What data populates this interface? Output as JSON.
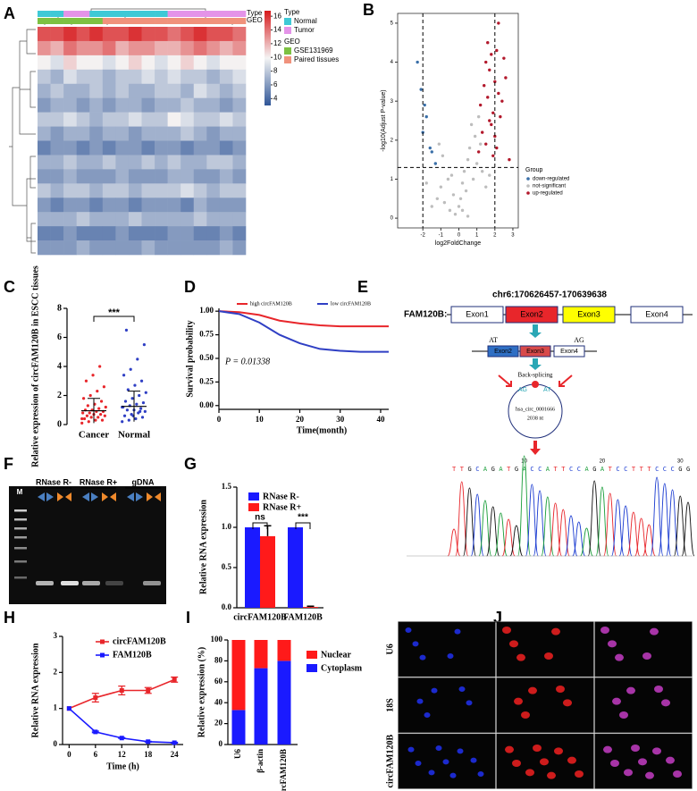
{
  "chart_data": [
    {
      "panel": "A",
      "type": "heatmap",
      "annotation_labels": [
        "Type",
        "GEO"
      ],
      "columns_type": [
        "Normal",
        "Normal",
        "Tumor",
        "Tumor",
        "Normal",
        "Normal",
        "Normal",
        "Normal",
        "Normal",
        "Normal",
        "Tumor",
        "Tumor",
        "Tumor",
        "Tumor",
        "Tumor",
        "Tumor"
      ],
      "columns_geo": [
        "GSE131969",
        "GSE131969",
        "GSE131969",
        "GSE131969",
        "GSE131969",
        "Paired tissues",
        "Paired tissues",
        "Paired tissues",
        "Paired tissues",
        "Paired tissues",
        "Paired tissues",
        "Paired tissues",
        "Paired tissues",
        "Paired tissues",
        "Paired tissues",
        "Paired tissues"
      ],
      "legend": [
        {
          "title": "Type",
          "items": [
            {
              "name": "Normal",
              "color": "#3ec9d6"
            },
            {
              "name": "Tumor",
              "color": "#e493e8"
            }
          ]
        },
        {
          "title": "GEO",
          "items": [
            {
              "name": "GSE131969",
              "color": "#7dc142"
            },
            {
              "name": "Paired tissues",
              "color": "#f0927c"
            }
          ]
        }
      ],
      "colors": [
        "#2f5597",
        "#f4f4f4",
        "#d7191c"
      ],
      "zlim": [
        3,
        16.8
      ],
      "zticks": [
        4,
        6,
        8,
        10,
        12,
        14,
        16
      ],
      "values": [
        [
          15,
          15,
          16,
          15,
          16,
          15,
          15,
          16,
          15,
          15,
          14,
          15,
          16,
          15,
          15,
          14
        ],
        [
          13,
          12,
          14,
          13,
          13,
          14,
          12,
          13,
          13,
          12,
          12,
          13,
          14,
          13,
          12,
          13
        ],
        [
          10,
          9,
          11,
          10,
          10,
          9,
          10,
          11,
          10,
          9,
          10,
          11,
          10,
          9,
          10,
          10
        ],
        [
          8,
          7,
          9,
          8,
          8,
          7,
          8,
          8,
          9,
          8,
          9,
          8,
          8,
          7,
          8,
          9
        ],
        [
          7,
          8,
          7,
          7,
          8,
          7,
          8,
          7,
          7,
          8,
          8,
          7,
          9,
          8,
          7,
          8
        ],
        [
          6,
          7,
          7,
          6,
          7,
          6,
          7,
          7,
          6,
          7,
          7,
          8,
          7,
          7,
          6,
          7
        ],
        [
          8,
          8,
          9,
          8,
          7,
          8,
          8,
          9,
          8,
          8,
          10,
          9,
          8,
          8,
          9,
          8
        ],
        [
          7,
          6,
          7,
          7,
          6,
          7,
          7,
          6,
          7,
          7,
          7,
          8,
          7,
          6,
          7,
          7
        ],
        [
          5,
          6,
          6,
          5,
          6,
          5,
          6,
          6,
          5,
          6,
          6,
          5,
          6,
          6,
          5,
          6
        ],
        [
          7,
          7,
          8,
          7,
          7,
          8,
          7,
          7,
          8,
          7,
          8,
          7,
          7,
          8,
          8,
          7
        ],
        [
          6,
          6,
          7,
          6,
          6,
          6,
          7,
          6,
          6,
          6,
          7,
          7,
          6,
          6,
          7,
          6
        ],
        [
          8,
          7,
          8,
          8,
          7,
          8,
          8,
          7,
          8,
          8,
          8,
          9,
          8,
          7,
          8,
          8
        ],
        [
          6,
          5,
          6,
          6,
          5,
          6,
          6,
          5,
          6,
          6,
          6,
          5,
          7,
          6,
          6,
          6
        ],
        [
          7,
          7,
          7,
          8,
          7,
          7,
          7,
          8,
          7,
          7,
          7,
          7,
          8,
          7,
          7,
          7
        ],
        [
          5,
          5,
          6,
          5,
          5,
          5,
          6,
          5,
          5,
          5,
          6,
          6,
          5,
          5,
          6,
          5
        ],
        [
          6,
          6,
          6,
          7,
          6,
          6,
          6,
          6,
          7,
          6,
          6,
          6,
          6,
          6,
          7,
          6
        ]
      ]
    },
    {
      "panel": "B",
      "type": "scatter",
      "xlabel": "log2FoldChange",
      "ylabel": "-log10(Adjust P-value)",
      "xlim": [
        -3.4,
        3.3
      ],
      "ylim": [
        -0.25,
        5.25
      ],
      "xticks": [
        -2,
        -1,
        0,
        1,
        2,
        3
      ],
      "yticks": [
        0,
        1,
        2,
        3,
        4,
        5
      ],
      "vlines": [
        -2,
        2
      ],
      "hline": 1.3,
      "legend_title": "Group",
      "series": [
        {
          "name": "down-regulated",
          "color": "#3a6fa8",
          "x": [
            -2.3,
            -2.1,
            -1.9,
            -1.6,
            -1.8,
            -2.0,
            -1.5,
            -1.3
          ],
          "values": [
            4.0,
            3.3,
            2.9,
            1.8,
            2.6,
            2.2,
            1.7,
            1.4
          ]
        },
        {
          "name": "not-significant",
          "color": "#bdbdbd",
          "x": [
            -1.5,
            -1.2,
            -1,
            -0.8,
            -0.6,
            -0.5,
            -0.3,
            -0.2,
            0,
            0.1,
            0.2,
            0.3,
            0.4,
            0.5,
            0.6,
            0.8,
            0.9,
            1,
            1.1,
            1.2,
            1.3,
            1.5,
            -0.9,
            -0.4,
            0.2,
            0.7,
            -1.8,
            -1.1,
            1.7,
            0.5
          ],
          "values": [
            0.3,
            0.5,
            0.8,
            0.4,
            1.0,
            0.2,
            0.6,
            0.1,
            0.3,
            0.5,
            0.9,
            1.2,
            0.7,
            1.5,
            1.8,
            1.0,
            2.1,
            1.4,
            2.6,
            1.9,
            1.2,
            0.8,
            1.6,
            1.1,
            0.2,
            2.4,
            0.9,
            1.9,
            1.1,
            0.05
          ]
        },
        {
          "name": "up-regulated",
          "color": "#b2182b",
          "x": [
            1.2,
            1.4,
            1.5,
            1.6,
            1.7,
            1.8,
            1.9,
            2.0,
            2.1,
            2.2,
            2.3,
            1.3,
            1.5,
            1.7,
            1.9,
            2.0,
            2.4,
            2.5,
            2.8,
            1.6,
            1.8,
            2.1,
            2.6,
            1.1,
            2.2
          ],
          "values": [
            2.9,
            3.4,
            4.0,
            3.1,
            3.8,
            4.2,
            2.7,
            3.5,
            4.3,
            3.2,
            2.6,
            2.2,
            1.9,
            2.5,
            1.6,
            2.1,
            3.0,
            4.1,
            1.5,
            4.5,
            2.4,
            1.8,
            3.6,
            1.7,
            5.0
          ]
        }
      ]
    },
    {
      "panel": "C",
      "type": "dot",
      "ylabel": "Relative expression of circFAM120B in ESCC tissues",
      "categories": [
        "Cancer",
        "Normal"
      ],
      "colors": [
        "#e8262b",
        "#2f3fc4"
      ],
      "values": [
        [
          0.1,
          0.2,
          0.3,
          0.3,
          0.4,
          0.5,
          0.5,
          0.6,
          0.6,
          0.7,
          0.7,
          0.8,
          0.8,
          0.9,
          0.9,
          1.0,
          1.0,
          1.1,
          1.2,
          1.3,
          1.4,
          1.6,
          1.8,
          2.0,
          2.3,
          2.6,
          3.0,
          3.4,
          4.0,
          0.4
        ],
        [
          0.2,
          0.3,
          0.4,
          0.5,
          0.6,
          0.7,
          0.8,
          0.9,
          1.0,
          1.0,
          1.1,
          1.2,
          1.3,
          1.4,
          1.5,
          1.6,
          1.8,
          2.0,
          2.2,
          2.4,
          2.7,
          3.0,
          3.4,
          3.8,
          4.5,
          5.5,
          6.5,
          0.6,
          0.9,
          1.2
        ]
      ],
      "means": [
        0.95,
        1.25
      ],
      "sd": [
        0.85,
        1.05
      ],
      "ylim": [
        0,
        8
      ],
      "yticks": [
        0,
        2,
        4,
        6,
        8
      ],
      "significance": "***"
    },
    {
      "panel": "D",
      "type": "survival",
      "xlabel": "Time(month)",
      "ylabel": "Survival probability",
      "x": [
        0,
        5,
        10,
        15,
        20,
        25,
        30,
        35,
        40,
        42
      ],
      "series": [
        {
          "name": "high circFAM120B",
          "color": "#e8262b",
          "values": [
            1,
            0.99,
            0.96,
            0.9,
            0.87,
            0.85,
            0.84,
            0.84,
            0.84,
            0.84
          ]
        },
        {
          "name": "low circFAM120B",
          "color": "#2f3fc4",
          "values": [
            1,
            0.97,
            0.88,
            0.75,
            0.66,
            0.6,
            0.58,
            0.57,
            0.57,
            0.57
          ]
        }
      ],
      "xlim": [
        0,
        42
      ],
      "ylim": [
        -0.04,
        1.03
      ],
      "xticks": [
        0,
        10,
        20,
        30,
        40
      ],
      "yticks": [
        {
          "value": 0,
          "label": "0.00"
        },
        {
          "value": 0.25,
          "label": "0.25"
        },
        {
          "value": 0.5,
          "label": "0.50"
        },
        {
          "value": 0.75,
          "label": "0.75"
        },
        {
          "value": 1,
          "label": "1.00"
        }
      ],
      "annotation": "P = 0.01338"
    },
    {
      "panel": "E",
      "type": "diagram",
      "title": "chr6:170626457-170639638",
      "gene_label": "FAM120B:",
      "exons": [
        "Exon1",
        "Exon2",
        "Exon3",
        "Exon4"
      ],
      "exon_colors": [
        "#ffffff",
        "#e8262b",
        "#ffff00",
        "#ffffff"
      ],
      "circ_exons": [
        "Exon2",
        "Exon3",
        "Exon4"
      ],
      "circ_exon_colors": [
        "#2f6fc4",
        "#d84a4a",
        "#ffffff"
      ],
      "splice_left": "AT",
      "splice_right": "AG",
      "process": "Back-splicing",
      "junction": [
        "AG",
        "AT"
      ],
      "circ_name": "hsa_circ_0001666",
      "circ_length": "2038 nt",
      "sequence": "TTGCAGATGACCATTCCAGATCCTTTCCCGG",
      "sequence_ticks": [
        10,
        20,
        30
      ]
    },
    {
      "panel": "F",
      "type": "gel",
      "marker": "M",
      "lanes": [
        "RNase R-",
        "RNase R+",
        "gDNA"
      ]
    },
    {
      "panel": "G",
      "type": "bar",
      "ylabel": "Relative RNA expression",
      "categories": [
        "circFAM120B",
        "FAM120B"
      ],
      "series": [
        {
          "name": "RNase R-",
          "color": "#1a1aff",
          "values": [
            1.0,
            1.0
          ],
          "errors": [
            0,
            0
          ]
        },
        {
          "name": "RNase R+",
          "color": "#ff1a1a",
          "values": [
            0.89,
            0.01
          ],
          "errors": [
            0.13,
            0.01
          ]
        }
      ],
      "ylim": [
        0,
        1.5
      ],
      "yticks": [
        {
          "value": 0,
          "label": "0.0"
        },
        {
          "value": 0.5,
          "label": "0.5"
        },
        {
          "value": 1,
          "label": "1.0"
        },
        {
          "value": 1.5,
          "label": "1.5"
        }
      ],
      "significance": [
        "ns",
        "***"
      ]
    },
    {
      "panel": "H",
      "type": "line",
      "xlabel": "Time (h)",
      "ylabel": "Relative RNA expression",
      "x": [
        0,
        6,
        12,
        18,
        24
      ],
      "series": [
        {
          "name": "circFAM120B",
          "color": "#e8262b",
          "values": [
            1,
            1.3,
            1.5,
            1.5,
            1.8
          ],
          "errors": [
            0,
            0.12,
            0.12,
            0.08,
            0.07
          ]
        },
        {
          "name": "FAM120B",
          "color": "#1a1aff",
          "values": [
            1,
            0.35,
            0.18,
            0.08,
            0.05
          ],
          "errors": [
            0,
            0.02,
            0.01,
            0.01,
            0.01
          ]
        }
      ],
      "xlim": [
        -1.5,
        26
      ],
      "ylim": [
        0,
        3
      ],
      "xticks": [
        0,
        6,
        12,
        18,
        24
      ],
      "yticks": [
        0,
        1,
        2,
        3
      ]
    },
    {
      "panel": "I",
      "type": "stacked-bar",
      "ylabel": "Relative expression (%)",
      "categories": [
        "U6",
        "β-actin",
        "circFAM120B"
      ],
      "series": [
        {
          "name": "Cytoplasm",
          "color": "#1a1aff",
          "values": [
            33,
            73,
            80
          ]
        },
        {
          "name": "Nuclear",
          "color": "#ff1a1a",
          "values": [
            67,
            27,
            20
          ]
        }
      ],
      "legend_order": [
        1,
        0
      ],
      "ylim": [
        0,
        100
      ],
      "yticks": [
        0,
        20,
        40,
        60,
        80,
        100
      ]
    },
    {
      "panel": "J",
      "type": "image-grid",
      "rows": [
        "U6",
        "18S",
        "circFAM120B"
      ]
    }
  ]
}
